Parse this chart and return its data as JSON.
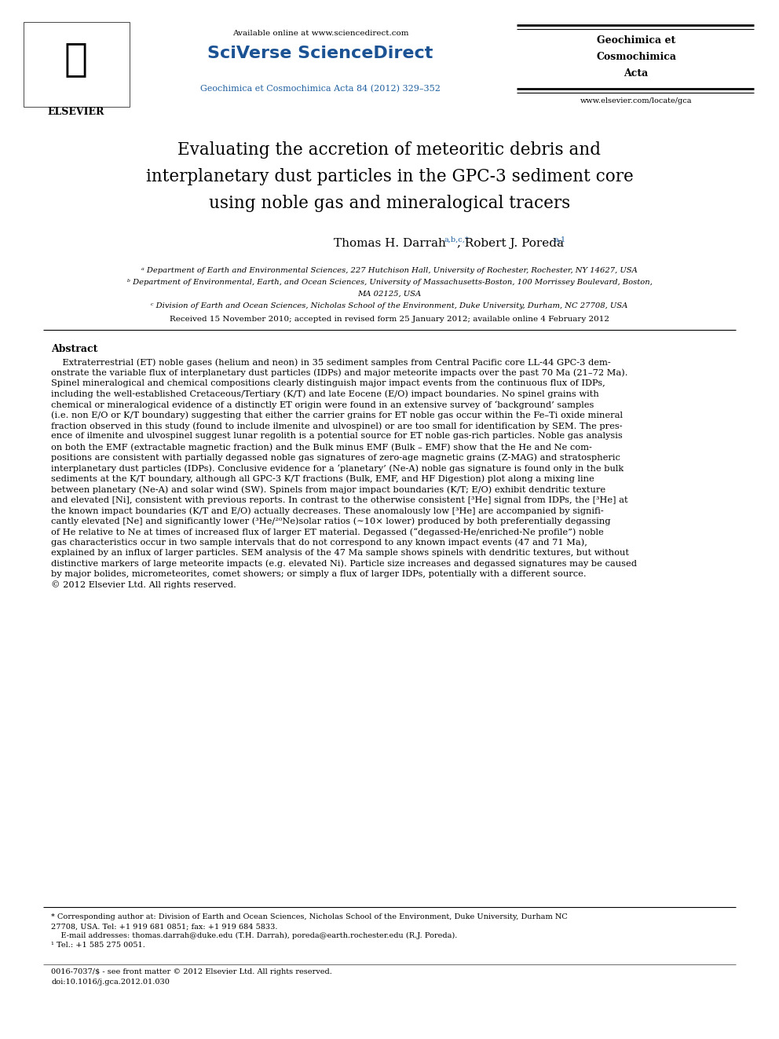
{
  "page_width": 9.92,
  "page_height": 13.23,
  "bg_color": "#ffffff",
  "header": {
    "available_online": "Available online at www.sciencedirect.com",
    "sciverse": "SciVerse ScienceDirect",
    "journal_blue": "Geochimica et Cosmochimica Acta 84 (2012) 329–352",
    "journal_right_line1": "Geochimica et",
    "journal_right_line2": "Cosmochimica",
    "journal_right_line3": "Acta",
    "website": "www.elsevier.com/locate/gca",
    "blue_color": "#2060a0",
    "sciverse_color": "#1a5294"
  },
  "title_line1": "Evaluating the accretion of meteoritic debris and",
  "title_line2": "interplanetary dust particles in the GPC-3 sediment core",
  "title_line3": "using noble gas and mineralogical tracers",
  "author_line": "Thomas H. Darrahᵃʸᶜ*, Robert J. Poredaᵃ,¹",
  "author_sup1": "a,b,c,*",
  "author_sup2": "a,1",
  "affil_a": "ᵃ Department of Earth and Environmental Sciences, 227 Hutchison Hall, University of Rochester, Rochester, NY 14627, USA",
  "affil_b1": "ᵇ Department of Environmental, Earth, and Ocean Sciences, University of Massachusetts-Boston, 100 Morrissey Boulevard, Boston,",
  "affil_b2": "MA 02125, USA",
  "affil_c": "ᶜ Division of Earth and Ocean Sciences, Nicholas School of the Environment, Duke University, Durham, NC 27708, USA",
  "received": "Received 15 November 2010; accepted in revised form 25 January 2012; available online 4 February 2012",
  "abstract_title": "Abstract",
  "abstract_lines": [
    "    Extraterrestrial (ET) noble gases (helium and neon) in 35 sediment samples from Central Pacific core LL-44 GPC-3 dem-",
    "onstrate the variable flux of interplanetary dust particles (IDPs) and major meteorite impacts over the past 70 Ma (21–72 Ma).",
    "Spinel mineralogical and chemical compositions clearly distinguish major impact events from the continuous flux of IDPs,",
    "including the well-established Cretaceous/Tertiary (K/T) and late Eocene (E/O) impact boundaries. No spinel grains with",
    "chemical or mineralogical evidence of a distinctly ET origin were found in an extensive survey of ‘background’ samples",
    "(i.e. non E/O or K/T boundary) suggesting that either the carrier grains for ET noble gas occur within the Fe–Ti oxide mineral",
    "fraction observed in this study (found to include ilmenite and ulvospinel) or are too small for identification by SEM. The pres-",
    "ence of ilmenite and ulvospinel suggest lunar regolith is a potential source for ET noble gas-rich particles. Noble gas analysis",
    "on both the EMF (extractable magnetic fraction) and the Bulk minus EMF (Bulk – EMF) show that the He and Ne com-",
    "positions are consistent with partially degassed noble gas signatures of zero-age magnetic grains (Z-MAG) and stratospheric",
    "interplanetary dust particles (IDPs). Conclusive evidence for a ‘planetary’ (Ne-A) noble gas signature is found only in the bulk",
    "sediments at the K/T boundary, although all GPC-3 K/T fractions (Bulk, EMF, and HF Digestion) plot along a mixing line",
    "between planetary (Ne-A) and solar wind (SW). Spinels from major impact boundaries (K/T; E/O) exhibit dendritic texture",
    "and elevated [Ni], consistent with previous reports. In contrast to the otherwise consistent [³He] signal from IDPs, the [³He] at",
    "the known impact boundaries (K/T and E/O) actually decreases. These anomalously low [³He] are accompanied by signifi-",
    "cantly elevated [Ne] and significantly lower (³He/²⁰Ne)solar ratios (∼10× lower) produced by both preferentially degassing",
    "of He relative to Ne at times of increased flux of larger ET material. Degassed (“degassed-He/enriched-Ne profile”) noble",
    "gas characteristics occur in two sample intervals that do not correspond to any known impact events (47 and 71 Ma),",
    "explained by an influx of larger particles. SEM analysis of the 47 Ma sample shows spinels with dendritic textures, but without",
    "distinctive markers of large meteorite impacts (e.g. elevated Ni). Particle size increases and degassed signatures may be caused",
    "by major bolides, micrometeorites, comet showers; or simply a flux of larger IDPs, potentially with a different source.",
    "© 2012 Elsevier Ltd. All rights reserved."
  ],
  "fn1": "* Corresponding author at: Division of Earth and Ocean Sciences, Nicholas School of the Environment, Duke University, Durham NC",
  "fn2": "27708, USA. Tel: +1 919 681 0851; fax: +1 919 684 5833.",
  "fn3_pre": "    E-mail addresses: ",
  "fn3_email1": "thomas.darrah@duke.edu",
  "fn3_mid": " (T.H. Darrah), ",
  "fn3_email2": "poreda@earth.rochester.edu",
  "fn3_post": " (R.J. Poreda).",
  "fn4": "¹ Tel.: +1 585 275 0051.",
  "issn_line": "0016-7037/$ - see front matter © 2012 Elsevier Ltd. All rights reserved.",
  "doi_line": "doi:10.1016/j.gca.2012.01.030"
}
